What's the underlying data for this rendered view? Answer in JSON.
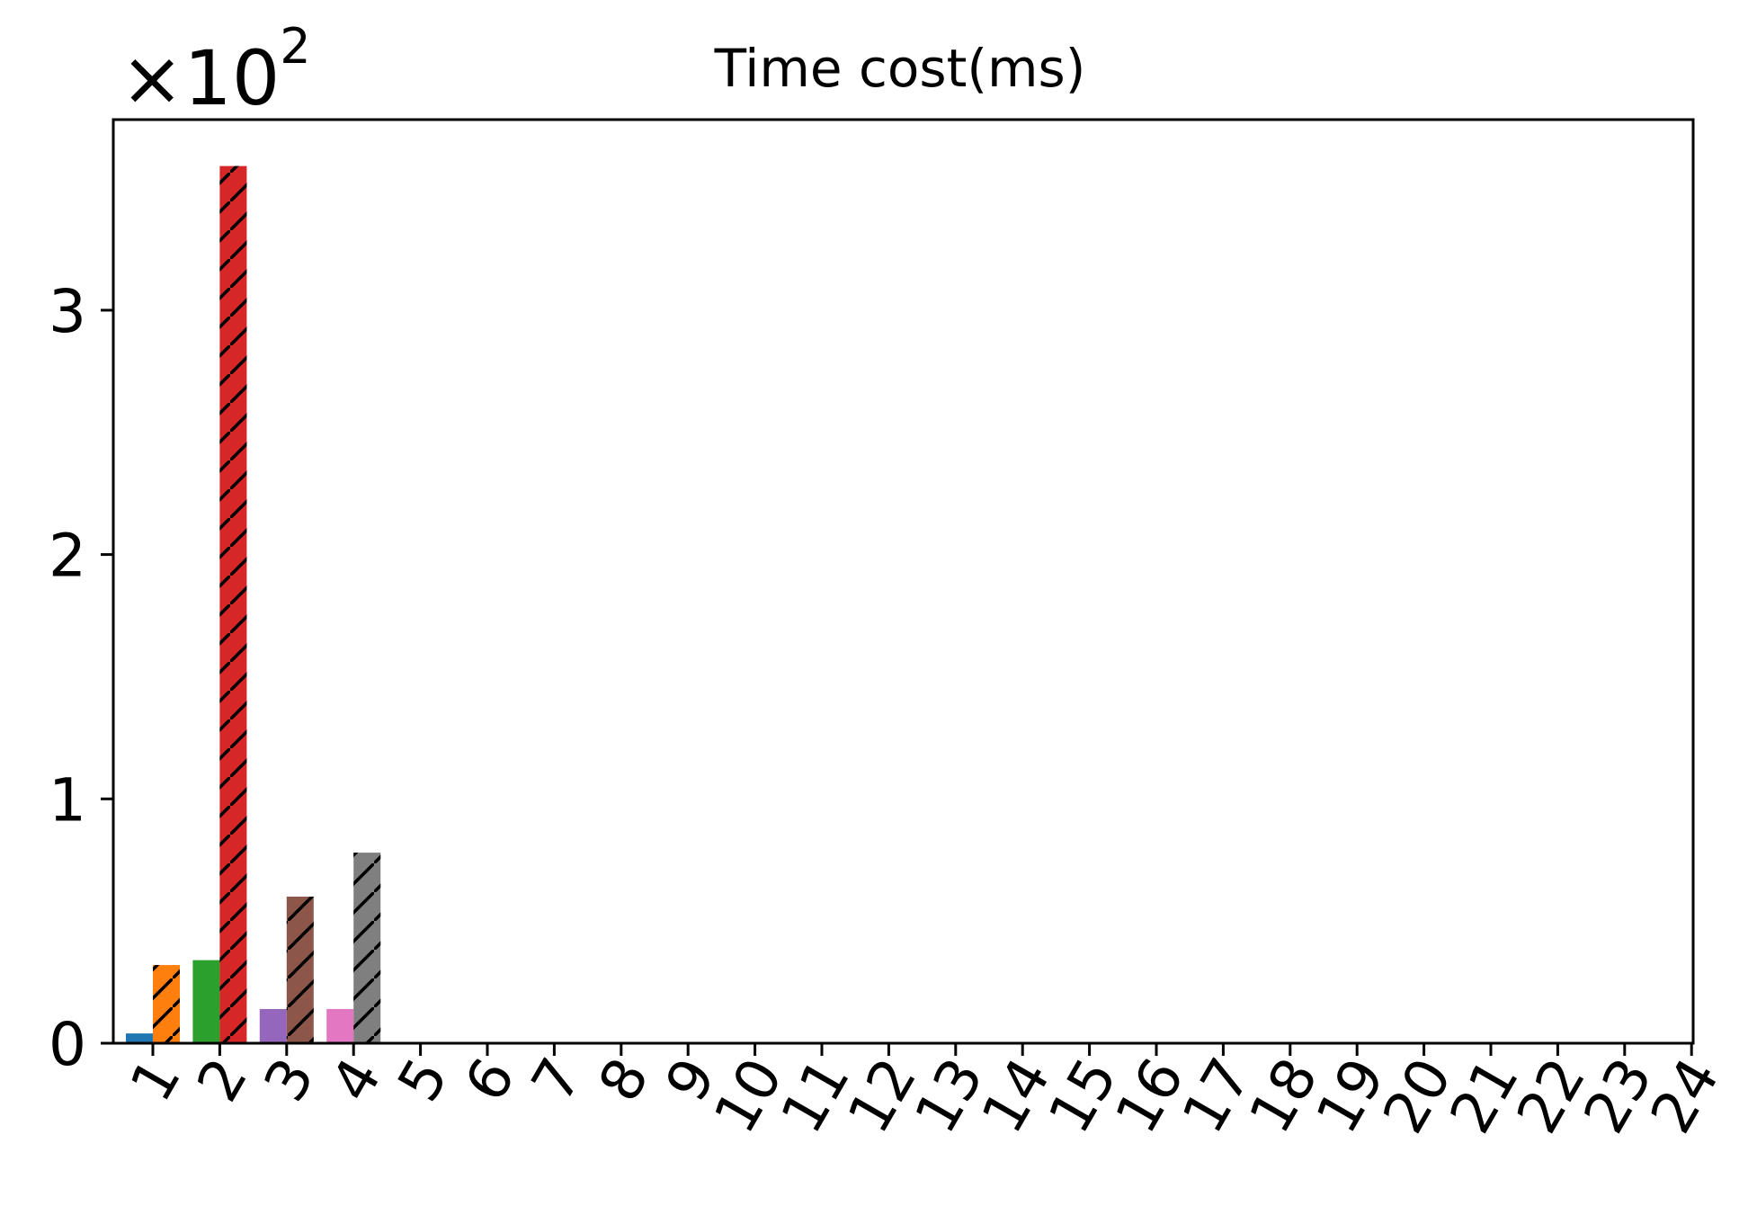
{
  "chart_data": {
    "type": "bar",
    "title": "Time cost(ms)",
    "xlabel": "",
    "ylabel": "",
    "y_scale_prefix": "×10",
    "y_scale_exponent": "2",
    "categories": [
      "1",
      "2",
      "3",
      "4",
      "5",
      "6",
      "7",
      "8",
      "9",
      "10",
      "11",
      "12",
      "13",
      "14",
      "15",
      "16",
      "17",
      "18",
      "19",
      "20",
      "21",
      "22",
      "23",
      "24"
    ],
    "ylim": [
      0,
      3.78
    ],
    "yticks": [
      "0",
      "1",
      "2",
      "3"
    ],
    "grid": false,
    "legend": "none",
    "series": [
      {
        "color": "#1f77b4",
        "hatch": false,
        "values": [
          0.04,
          0,
          0,
          0,
          0,
          0,
          0,
          0,
          0,
          0,
          0,
          0,
          0,
          0,
          0,
          0,
          0,
          0,
          0,
          0,
          0,
          0,
          0,
          0
        ]
      },
      {
        "color": "#ff7f0e",
        "hatch": true,
        "values": [
          0.32,
          0,
          0,
          0,
          0,
          0,
          0,
          0,
          0,
          0,
          0,
          0,
          0,
          0,
          0,
          0,
          0,
          0,
          0,
          0,
          0,
          0,
          0,
          0
        ]
      },
      {
        "color": "#2ca02c",
        "hatch": false,
        "values": [
          0,
          0.34,
          0,
          0,
          0,
          0,
          0,
          0,
          0,
          0,
          0,
          0,
          0,
          0,
          0,
          0,
          0,
          0,
          0,
          0,
          0,
          0,
          0,
          0
        ]
      },
      {
        "color": "#d62728",
        "hatch": true,
        "values": [
          0,
          3.59,
          0,
          0,
          0,
          0,
          0,
          0,
          0,
          0,
          0,
          0,
          0,
          0,
          0,
          0,
          0,
          0,
          0,
          0,
          0,
          0,
          0,
          0
        ]
      },
      {
        "color": "#9467bd",
        "hatch": false,
        "values": [
          0,
          0,
          0.14,
          0,
          0,
          0,
          0,
          0,
          0,
          0,
          0,
          0,
          0,
          0,
          0,
          0,
          0,
          0,
          0,
          0,
          0,
          0,
          0,
          0
        ]
      },
      {
        "color": "#8c564b",
        "hatch": true,
        "values": [
          0,
          0,
          0.6,
          0,
          0,
          0,
          0,
          0,
          0,
          0,
          0,
          0,
          0,
          0,
          0,
          0,
          0,
          0,
          0,
          0,
          0,
          0,
          0,
          0
        ]
      },
      {
        "color": "#e377c2",
        "hatch": false,
        "values": [
          0,
          0,
          0,
          0.14,
          0,
          0,
          0,
          0,
          0,
          0,
          0,
          0,
          0,
          0,
          0,
          0,
          0,
          0,
          0,
          0,
          0,
          0,
          0,
          0
        ]
      },
      {
        "color": "#7f7f7f",
        "hatch": true,
        "values": [
          0,
          0,
          0,
          0.78,
          0,
          0,
          0,
          0,
          0,
          0,
          0,
          0,
          0,
          0,
          0,
          0,
          0,
          0,
          0,
          0,
          0,
          0,
          0,
          0
        ]
      }
    ]
  }
}
